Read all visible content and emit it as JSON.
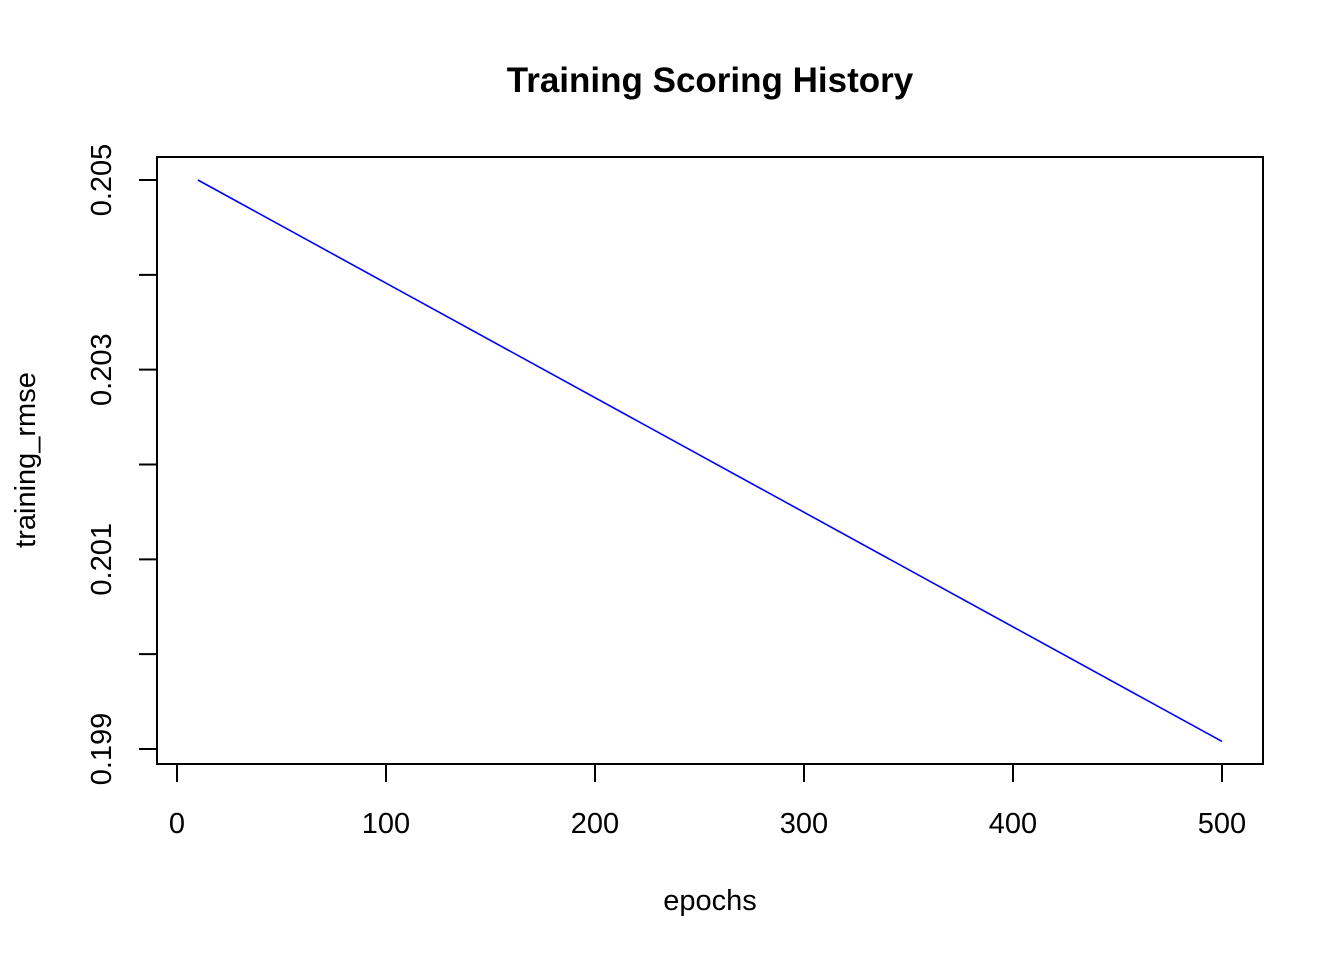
{
  "chart_data": {
    "type": "line",
    "title": "Training Scoring History",
    "xlabel": "epochs",
    "ylabel": "training_rmse",
    "xlim": [
      0,
      500
    ],
    "ylim": [
      0.199,
      0.205
    ],
    "x_ticks": [
      0,
      100,
      200,
      300,
      400,
      500
    ],
    "x_tick_labels": [
      "0",
      "100",
      "200",
      "300",
      "400",
      "500"
    ],
    "y_ticks": [
      0.199,
      0.2,
      0.201,
      0.202,
      0.203,
      0.204,
      0.205
    ],
    "y_tick_labels": [
      "0.199",
      "",
      "0.201",
      "",
      "0.203",
      "",
      "0.205"
    ],
    "grid": false,
    "series": [
      {
        "color": "#0000ff",
        "x": [
          10,
          500
        ],
        "y": [
          0.205,
          0.19908
        ]
      }
    ]
  }
}
